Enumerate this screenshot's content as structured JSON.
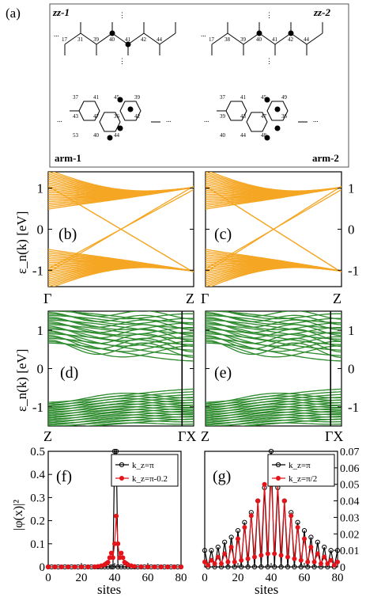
{
  "figure": {
    "panel_labels": [
      "(a)",
      "(b)",
      "(c)",
      "(d)",
      "(e)",
      "(f)",
      "(g)"
    ],
    "lattice_sublabels": [
      "zz-1",
      "zz-2",
      "arm-1",
      "arm-2"
    ],
    "lattice_site_numbers": {
      "zz1": [
        "17",
        "31",
        "39",
        "40",
        "41",
        "42",
        "44"
      ],
      "zz2": [
        "17",
        "38",
        "39",
        "40",
        "41",
        "42",
        "44"
      ],
      "arm1": [
        "37",
        "41",
        "45",
        "39",
        "43",
        "47",
        "36",
        "42",
        "53",
        "40",
        "44"
      ],
      "arm2": [
        "37",
        "41",
        "45",
        "49",
        "39",
        "43",
        "47",
        "36",
        "40",
        "44",
        "48"
      ]
    },
    "band_ylabel": "ε_n(k) [eV]",
    "band_ticks": [
      "-1",
      "0",
      "1"
    ],
    "band_x_top": [
      "Γ",
      "Z"
    ],
    "band_x_bottom": [
      "Z",
      "ΓX"
    ],
    "dens_ylabel": "|φ(x)|²",
    "dens_xlabel": "sites",
    "colors": {
      "orange": "#f5a623",
      "green": "#2e8b2e",
      "red": "#e4141b",
      "black": "#000000"
    }
  },
  "chart_data": [
    {
      "panel": "b",
      "type": "line",
      "ylim": [
        -1.4,
        1.4
      ],
      "yticks": [
        -1,
        0,
        1
      ],
      "xtick_labels": [
        "Γ",
        "Z"
      ],
      "ylabel": "ε_n(k) [eV]",
      "bands": 24,
      "color": "#f5a623"
    },
    {
      "panel": "c",
      "type": "line",
      "ylim": [
        -1.4,
        1.4
      ],
      "yticks": [
        -1,
        0,
        1
      ],
      "xtick_labels": [
        "Γ",
        "Z"
      ],
      "bands": 24,
      "color": "#f5a623"
    },
    {
      "panel": "d",
      "type": "line",
      "ylim": [
        -1.5,
        1.5
      ],
      "yticks": [
        -1,
        0,
        1
      ],
      "xtick_labels": [
        "Z",
        "ΓX"
      ],
      "ylabel": "ε_n(k) [eV]",
      "bands": 24,
      "color": "#2e8b2e"
    },
    {
      "panel": "e",
      "type": "line",
      "ylim": [
        -1.5,
        1.5
      ],
      "yticks": [
        -1,
        0,
        1
      ],
      "xtick_labels": [
        "Z",
        "ΓX"
      ],
      "bands": 24,
      "color": "#2e8b2e"
    },
    {
      "panel": "f",
      "type": "line",
      "xlabel": "sites",
      "ylabel": "|φ(x)|²",
      "xlim": [
        0,
        80
      ],
      "ylim": [
        0,
        0.5
      ],
      "xticks": [
        0,
        20,
        40,
        60,
        80
      ],
      "yticks": [
        0,
        0.1,
        0.2,
        0.3,
        0.4,
        0.5
      ],
      "legend_position": "top-right",
      "series": [
        {
          "name": "k_z=π",
          "color": "#000000",
          "x": [
            0,
            2,
            4,
            6,
            8,
            10,
            12,
            14,
            16,
            18,
            20,
            22,
            24,
            26,
            28,
            30,
            32,
            34,
            36,
            38,
            39,
            40,
            41,
            42,
            44,
            46,
            48,
            50,
            52,
            54,
            56,
            58,
            60,
            62,
            64,
            66,
            68,
            70,
            72,
            74,
            76,
            78,
            80
          ],
          "y": [
            0,
            0,
            0,
            0,
            0,
            0,
            0,
            0,
            0,
            0,
            0,
            0,
            0,
            0,
            0,
            0,
            0,
            0,
            0,
            0,
            0,
            0.5,
            0.5,
            0,
            0,
            0,
            0,
            0,
            0,
            0,
            0,
            0,
            0,
            0,
            0,
            0,
            0,
            0,
            0,
            0,
            0,
            0,
            0
          ]
        },
        {
          "name": "k_z=π-0.2",
          "color": "#e4141b",
          "x": [
            0,
            4,
            8,
            12,
            16,
            20,
            24,
            28,
            30,
            32,
            34,
            35,
            36,
            37,
            38,
            39,
            40,
            41,
            42,
            43,
            44,
            45,
            46,
            47,
            48,
            50,
            52,
            56,
            60,
            64,
            68,
            72,
            76,
            80
          ],
          "y": [
            0,
            0,
            0,
            0,
            0,
            0,
            0,
            0.001,
            0.002,
            0.005,
            0.01,
            0.015,
            0.02,
            0.04,
            0.06,
            0.04,
            0.1,
            0.22,
            0.1,
            0.04,
            0.06,
            0.04,
            0.02,
            0.015,
            0.01,
            0.005,
            0.002,
            0.001,
            0,
            0,
            0,
            0,
            0,
            0
          ]
        }
      ]
    },
    {
      "panel": "g",
      "type": "line",
      "xlabel": "sites",
      "xlim": [
        0,
        80
      ],
      "ylim": [
        0,
        0.07
      ],
      "xticks": [
        0,
        20,
        40,
        60,
        80
      ],
      "yticks": [
        0,
        0.01,
        0.02,
        0.03,
        0.04,
        0.05,
        0.06,
        0.07
      ],
      "legend_position": "top-right",
      "series": [
        {
          "name": "k_z=π",
          "color": "#000000",
          "x": [
            0,
            2,
            4,
            6,
            8,
            10,
            12,
            14,
            16,
            18,
            20,
            22,
            24,
            26,
            28,
            30,
            32,
            34,
            36,
            38,
            40,
            42,
            44,
            46,
            48,
            50,
            52,
            54,
            56,
            58,
            60,
            62,
            64,
            66,
            68,
            70,
            72,
            74,
            76,
            78,
            80
          ],
          "y": [
            0.01,
            0,
            0.01,
            0,
            0.012,
            0,
            0.015,
            0,
            0.018,
            0,
            0.022,
            0,
            0.027,
            0,
            0.033,
            0,
            0.04,
            0,
            0.048,
            0,
            0.07,
            0,
            0.048,
            0,
            0.04,
            0,
            0.033,
            0,
            0.027,
            0,
            0.022,
            0,
            0.018,
            0,
            0.015,
            0,
            0.012,
            0,
            0.01,
            0,
            0.01
          ]
        },
        {
          "name": "k_z=π/2",
          "color": "#e4141b",
          "x": [
            0,
            2,
            4,
            6,
            8,
            10,
            12,
            14,
            16,
            18,
            20,
            22,
            24,
            26,
            28,
            30,
            32,
            34,
            36,
            38,
            40,
            42,
            44,
            46,
            48,
            50,
            52,
            54,
            56,
            58,
            60,
            62,
            64,
            66,
            68,
            70,
            72,
            74,
            76,
            78,
            80
          ],
          "y": [
            0.003,
            0.001,
            0.004,
            0.002,
            0.006,
            0.002,
            0.008,
            0.003,
            0.012,
            0.003,
            0.017,
            0.004,
            0.024,
            0.005,
            0.031,
            0.006,
            0.04,
            0.007,
            0.05,
            0.008,
            0.057,
            0.008,
            0.05,
            0.007,
            0.04,
            0.006,
            0.031,
            0.005,
            0.024,
            0.004,
            0.017,
            0.003,
            0.012,
            0.003,
            0.008,
            0.002,
            0.006,
            0.002,
            0.004,
            0.001,
            0.003
          ]
        }
      ]
    }
  ]
}
